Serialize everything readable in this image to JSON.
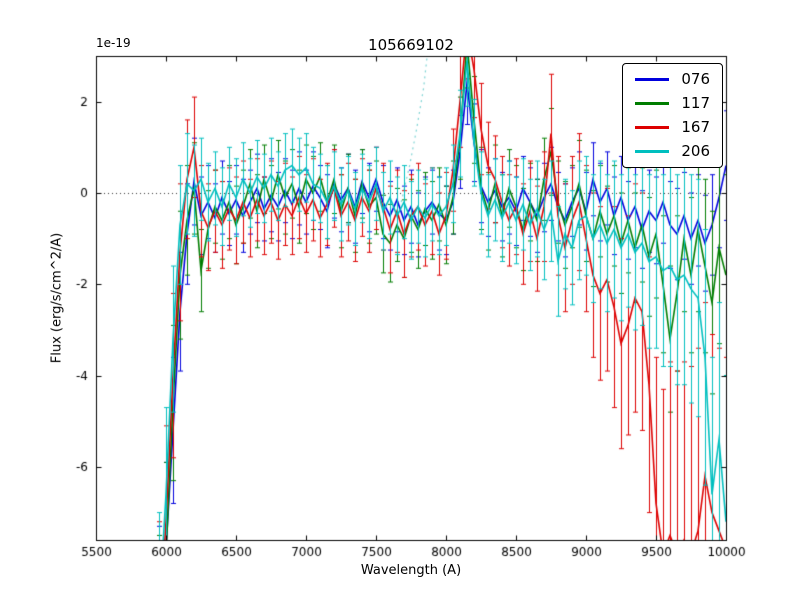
{
  "chart_data": {
    "type": "line",
    "title": "105669102",
    "xlabel": "Wavelength (A)",
    "ylabel": "Flux (erg/s/cm^2/A)",
    "offset_text": "1e-19",
    "xlim": [
      5500,
      10000
    ],
    "ylim": [
      -7.6,
      3.0
    ],
    "xticks": [
      5500,
      6000,
      6500,
      7000,
      7500,
      8000,
      8500,
      9000,
      9500,
      10000
    ],
    "yticks": [
      -6,
      -4,
      -2,
      0,
      2
    ],
    "grid": "off",
    "legend_position": "upper right",
    "zero_line": {
      "y": 0,
      "style": "dotted",
      "color": "#333333"
    },
    "artifact_line": {
      "color": "#7fd4d4",
      "style": "dotted",
      "points": [
        [
          7680,
          -0.2
        ],
        [
          7740,
          0.6
        ],
        [
          7790,
          1.4
        ],
        [
          7840,
          2.3
        ],
        [
          7880,
          3.4
        ]
      ]
    },
    "x": [
      5950,
      6000,
      6050,
      6100,
      6150,
      6200,
      6250,
      6300,
      6350,
      6400,
      6450,
      6500,
      6550,
      6600,
      6650,
      6700,
      6750,
      6800,
      6850,
      6900,
      6950,
      7000,
      7050,
      7100,
      7150,
      7200,
      7250,
      7300,
      7350,
      7400,
      7450,
      7500,
      7550,
      7600,
      7650,
      7700,
      7750,
      7800,
      7850,
      7900,
      7950,
      8000,
      8050,
      8100,
      8150,
      8200,
      8250,
      8300,
      8350,
      8400,
      8450,
      8500,
      8550,
      8600,
      8650,
      8700,
      8750,
      8800,
      8850,
      8900,
      8950,
      9000,
      9050,
      9100,
      9150,
      9200,
      9250,
      9300,
      9350,
      9400,
      9450,
      9500,
      9550,
      9600,
      9650,
      9700,
      9750,
      9800,
      9850,
      9900,
      9950,
      10000
    ],
    "series": [
      {
        "name": "076",
        "color": "#0000dd",
        "y": [
          -9.5,
          -7.8,
          -5.2,
          -2.6,
          -0.9,
          0.25,
          -0.5,
          -0.2,
          -0.55,
          -0.1,
          -0.45,
          -0.15,
          -0.5,
          -0.2,
          0.1,
          -0.35,
          -0.05,
          -0.3,
          0.05,
          -0.25,
          0.1,
          -0.2,
          0.15,
          -0.1,
          -0.4,
          0.2,
          -0.15,
          0.1,
          -0.3,
          0.25,
          -0.1,
          0.3,
          -0.2,
          -0.5,
          -0.15,
          -0.6,
          -0.3,
          -0.7,
          -0.4,
          -0.2,
          -0.45,
          -0.6,
          -0.2,
          0.9,
          2.4,
          1.1,
          0.15,
          -0.2,
          0.05,
          -0.3,
          -0.1,
          -0.4,
          0.1,
          -0.2,
          -0.5,
          -0.1,
          0.2,
          -0.3,
          -0.6,
          -0.2,
          0.1,
          -0.4,
          0.3,
          -0.2,
          0.1,
          -0.5,
          -0.1,
          -0.6,
          -0.3,
          -0.8,
          -0.4,
          -0.6,
          -0.2,
          -0.7,
          -0.9,
          -0.5,
          -1.0,
          -0.6,
          -1.1,
          -0.7,
          -0.1,
          0.6
        ],
        "yerr": [
          2.2,
          1.9,
          1.6,
          1.3,
          1.1,
          0.95,
          0.85,
          0.8,
          0.75,
          0.8,
          0.7,
          0.75,
          0.8,
          0.7,
          0.75,
          0.7,
          0.8,
          0.75,
          0.7,
          0.75,
          0.8,
          0.7,
          0.75,
          0.7,
          0.8,
          0.75,
          0.7,
          0.75,
          0.8,
          0.7,
          0.75,
          0.7,
          0.8,
          0.75,
          0.7,
          0.75,
          0.8,
          0.7,
          0.75,
          0.7,
          0.8,
          0.75,
          0.7,
          0.8,
          0.9,
          0.85,
          0.8,
          0.75,
          0.7,
          0.75,
          0.8,
          0.75,
          0.7,
          0.75,
          0.8,
          0.75,
          0.8,
          0.75,
          0.8,
          0.75,
          0.8,
          0.85,
          0.8,
          0.85,
          0.8,
          0.85,
          0.9,
          0.85,
          0.9,
          0.85,
          0.9,
          0.95,
          0.9,
          0.95,
          1.0,
          0.95,
          1.0,
          1.0,
          1.05,
          1.1,
          1.1,
          1.2
        ]
      },
      {
        "name": "117",
        "color": "#007d00",
        "y": [
          -9.8,
          -7.9,
          -4.6,
          -1.8,
          -0.6,
          0.1,
          -1.7,
          -0.8,
          -0.3,
          -0.6,
          -0.2,
          -0.7,
          -0.3,
          0.2,
          -0.4,
          0.3,
          -0.2,
          0.4,
          -0.1,
          0.2,
          -0.3,
          0.3,
          0.0,
          0.35,
          -0.2,
          0.3,
          -0.4,
          0.1,
          -0.5,
          0.2,
          -0.3,
          -0.1,
          -0.9,
          -1.1,
          -0.7,
          -1.0,
          -0.5,
          -0.8,
          -0.35,
          -0.6,
          -0.25,
          -0.7,
          -0.1,
          1.2,
          3.3,
          1.6,
          0.1,
          -0.4,
          0.2,
          -0.5,
          0.1,
          -0.3,
          -0.8,
          -0.2,
          -0.6,
          0.3,
          0.9,
          -0.2,
          -0.7,
          -0.3,
          0.2,
          -0.5,
          -1.0,
          -0.4,
          -0.9,
          -0.5,
          -1.1,
          -0.6,
          -1.2,
          -0.7,
          -1.4,
          -0.9,
          -2.0,
          -3.2,
          -2.2,
          -1.0,
          -1.8,
          -0.8,
          -1.6,
          -2.4,
          -1.2,
          -1.8
        ],
        "yerr": [
          2.3,
          2.0,
          1.7,
          1.4,
          1.2,
          1.0,
          0.9,
          0.85,
          0.8,
          0.85,
          0.8,
          0.85,
          0.8,
          0.75,
          0.8,
          0.75,
          0.8,
          0.75,
          0.8,
          0.75,
          0.8,
          0.75,
          0.8,
          0.75,
          0.8,
          0.75,
          0.8,
          0.75,
          0.8,
          0.75,
          0.8,
          0.8,
          0.85,
          0.85,
          0.8,
          0.85,
          0.8,
          0.85,
          0.8,
          0.85,
          0.8,
          0.85,
          0.8,
          0.9,
          1.0,
          0.95,
          0.9,
          0.85,
          0.85,
          0.9,
          0.85,
          0.9,
          0.9,
          0.85,
          0.9,
          0.9,
          0.95,
          0.9,
          0.95,
          0.9,
          0.95,
          1.0,
          1.05,
          1.0,
          1.05,
          1.1,
          1.1,
          1.15,
          1.2,
          1.25,
          1.3,
          1.4,
          1.5,
          1.6,
          1.7,
          1.6,
          1.7,
          1.8,
          1.9,
          2.0,
          2.1,
          2.2
        ]
      },
      {
        "name": "167",
        "color": "#dd0000",
        "y": [
          -9.6,
          -7.2,
          -4.0,
          -1.3,
          0.3,
          1.0,
          -0.4,
          -0.75,
          -0.4,
          -0.7,
          -0.35,
          -0.6,
          -0.2,
          -0.55,
          -0.15,
          -0.5,
          -0.2,
          -0.6,
          -0.25,
          -0.5,
          -0.1,
          -0.45,
          -0.15,
          -0.55,
          -0.25,
          0.1,
          -0.5,
          -0.2,
          -0.6,
          -0.1,
          -0.4,
          0.1,
          -0.3,
          -0.8,
          -0.4,
          -0.9,
          -0.5,
          -0.3,
          -0.7,
          -0.4,
          -0.9,
          -0.5,
          0.5,
          2.0,
          3.6,
          2.7,
          1.4,
          0.6,
          0.3,
          -0.2,
          -0.6,
          -0.3,
          -0.9,
          -0.4,
          -1.0,
          -0.3,
          1.3,
          -0.5,
          -1.2,
          -0.6,
          -0.2,
          -1.0,
          -1.8,
          -2.2,
          -1.9,
          -2.5,
          -3.3,
          -2.9,
          -2.3,
          -2.6,
          -4.2,
          -6.8,
          -7.9,
          -7.5,
          -7.9,
          -7.6,
          -7.9,
          -7.4,
          -6.2,
          -7.0,
          -7.4,
          -7.8
        ],
        "yerr": [
          2.4,
          2.1,
          1.8,
          1.5,
          1.3,
          1.1,
          1.0,
          0.95,
          0.9,
          0.95,
          0.9,
          0.95,
          0.9,
          0.85,
          0.9,
          0.85,
          0.9,
          0.85,
          0.9,
          0.85,
          0.9,
          0.85,
          0.9,
          0.85,
          0.9,
          0.85,
          0.9,
          0.85,
          0.9,
          0.85,
          0.9,
          0.9,
          0.95,
          0.95,
          0.9,
          0.95,
          0.9,
          0.95,
          0.9,
          0.95,
          0.9,
          0.95,
          0.9,
          1.0,
          1.1,
          1.05,
          1.0,
          0.95,
          0.95,
          1.0,
          1.0,
          1.05,
          1.1,
          1.1,
          1.15,
          1.2,
          1.3,
          1.3,
          1.4,
          1.4,
          1.5,
          1.6,
          1.8,
          1.9,
          2.0,
          2.2,
          2.3,
          2.4,
          2.5,
          2.6,
          2.8,
          3.2,
          3.6,
          3.8,
          4.0,
          3.9,
          4.1,
          4.0,
          3.8,
          3.9,
          4.0,
          4.2
        ]
      },
      {
        "name": "206",
        "color": "#00bfbf",
        "y": [
          -9.2,
          -6.6,
          -3.2,
          -0.7,
          0.2,
          0.05,
          0.3,
          -0.2,
          0.1,
          -0.3,
          0.2,
          -0.1,
          0.3,
          0.0,
          0.35,
          0.1,
          0.4,
          0.15,
          0.5,
          0.6,
          0.4,
          0.55,
          0.2,
          0.1,
          -0.2,
          0.15,
          -0.25,
          0.05,
          -0.35,
          0.1,
          -0.2,
          0.2,
          -0.4,
          -0.1,
          -0.5,
          -0.2,
          -0.6,
          -0.3,
          -0.55,
          -0.25,
          -0.5,
          -0.3,
          0.2,
          1.3,
          2.9,
          1.1,
          0.0,
          -0.5,
          -0.15,
          -0.55,
          -0.2,
          -0.6,
          -0.25,
          -0.7,
          -0.35,
          -0.8,
          -0.4,
          -1.5,
          -0.9,
          -1.2,
          -0.6,
          -0.5,
          -1.0,
          -0.7,
          -1.1,
          -0.8,
          -1.2,
          -0.9,
          -1.3,
          -1.1,
          -1.5,
          -1.4,
          -1.7,
          -1.6,
          -1.9,
          -1.8,
          -2.1,
          -2.3,
          -3.6,
          -6.6,
          -5.4,
          -7.2
        ],
        "yerr": [
          2.2,
          1.9,
          1.6,
          1.3,
          1.1,
          1.0,
          0.9,
          0.85,
          0.8,
          0.85,
          0.8,
          0.85,
          0.8,
          0.75,
          0.8,
          0.75,
          0.8,
          0.75,
          0.8,
          0.8,
          0.8,
          0.75,
          0.8,
          0.75,
          0.8,
          0.75,
          0.8,
          0.75,
          0.8,
          0.75,
          0.8,
          0.8,
          0.85,
          0.8,
          0.85,
          0.8,
          0.85,
          0.8,
          0.85,
          0.8,
          0.85,
          0.85,
          0.85,
          0.95,
          1.0,
          0.95,
          0.9,
          0.9,
          0.9,
          0.95,
          0.9,
          0.95,
          1.0,
          1.0,
          1.05,
          1.1,
          1.1,
          1.2,
          1.2,
          1.25,
          1.3,
          1.3,
          1.4,
          1.4,
          1.5,
          1.5,
          1.6,
          1.6,
          1.7,
          1.8,
          1.9,
          2.0,
          2.1,
          2.2,
          2.3,
          2.4,
          2.5,
          2.6,
          2.8,
          3.0,
          3.0,
          3.2
        ]
      }
    ]
  }
}
